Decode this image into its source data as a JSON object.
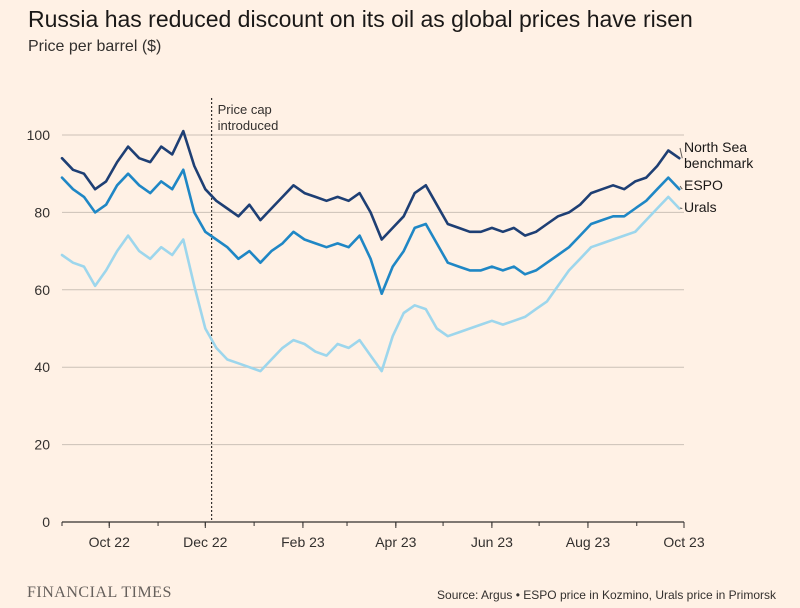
{
  "header": {
    "title": "Russia has reduced discount on its oil as global prices have risen",
    "subtitle": "Price per barrel ($)"
  },
  "footer": {
    "brand": "FINANCIAL TIMES",
    "source": "Source: Argus • ESPO price in Kozmino, Urals price in Primorsk"
  },
  "colors": {
    "background": "#fff1e5",
    "grid": "#ccc1b7",
    "north_sea": "#1e3f74",
    "espo": "#1f87c5",
    "urals": "#9dd6ec"
  },
  "chart_data": {
    "type": "line",
    "title": "Russia has reduced discount on its oil as global prices have risen",
    "ylabel": "Price per barrel ($)",
    "xlabel": "",
    "x_start": "2022-09-01",
    "x_end": "2023-10-01",
    "xlim": [
      "2022-09-01",
      "2023-10-01"
    ],
    "ylim": [
      0,
      100
    ],
    "yticks": [
      0,
      20,
      40,
      60,
      80,
      100
    ],
    "grid": true,
    "xticks": [
      {
        "date": "2022-10-01",
        "label": "Oct 22"
      },
      {
        "date": "2022-12-01",
        "label": "Dec 22"
      },
      {
        "date": "2023-02-01",
        "label": "Feb 23"
      },
      {
        "date": "2023-04-01",
        "label": "Apr 23"
      },
      {
        "date": "2023-06-01",
        "label": "Jun 23"
      },
      {
        "date": "2023-08-01",
        "label": "Aug 23"
      },
      {
        "date": "2023-10-01",
        "label": "Oct 23"
      }
    ],
    "annotations": [
      {
        "date": "2022-12-05",
        "text": [
          "Price cap",
          "introduced"
        ]
      }
    ],
    "x": [
      "2022-09-01",
      "2022-09-08",
      "2022-09-15",
      "2022-09-22",
      "2022-09-29",
      "2022-10-06",
      "2022-10-13",
      "2022-10-20",
      "2022-10-27",
      "2022-11-03",
      "2022-11-10",
      "2022-11-17",
      "2022-11-24",
      "2022-12-01",
      "2022-12-08",
      "2022-12-15",
      "2022-12-22",
      "2022-12-29",
      "2023-01-05",
      "2023-01-12",
      "2023-01-19",
      "2023-01-26",
      "2023-02-02",
      "2023-02-09",
      "2023-02-16",
      "2023-02-23",
      "2023-03-02",
      "2023-03-09",
      "2023-03-16",
      "2023-03-23",
      "2023-03-30",
      "2023-04-06",
      "2023-04-13",
      "2023-04-20",
      "2023-04-27",
      "2023-05-04",
      "2023-05-11",
      "2023-05-18",
      "2023-05-25",
      "2023-06-01",
      "2023-06-08",
      "2023-06-15",
      "2023-06-22",
      "2023-06-29",
      "2023-07-06",
      "2023-07-13",
      "2023-07-20",
      "2023-07-27",
      "2023-08-03",
      "2023-08-10",
      "2023-08-17",
      "2023-08-24",
      "2023-08-31",
      "2023-09-07",
      "2023-09-14",
      "2023-09-21",
      "2023-09-28"
    ],
    "series": [
      {
        "name": "North Sea benchmark",
        "label_lines": [
          "North Sea",
          "benchmark"
        ],
        "color": "#1e3f74",
        "values": [
          94,
          91,
          90,
          86,
          88,
          93,
          97,
          94,
          93,
          97,
          95,
          101,
          92,
          86,
          83,
          81,
          79,
          82,
          78,
          81,
          84,
          87,
          85,
          84,
          83,
          84,
          83,
          85,
          80,
          73,
          76,
          79,
          85,
          87,
          82,
          77,
          76,
          75,
          75,
          76,
          75,
          76,
          74,
          75,
          77,
          79,
          80,
          82,
          85,
          86,
          87,
          86,
          88,
          89,
          92,
          96,
          94
        ]
      },
      {
        "name": "ESPO",
        "label_lines": [
          "ESPO"
        ],
        "color": "#1f87c5",
        "values": [
          89,
          86,
          84,
          80,
          82,
          87,
          90,
          87,
          85,
          88,
          86,
          91,
          80,
          75,
          73,
          71,
          68,
          70,
          67,
          70,
          72,
          75,
          73,
          72,
          71,
          72,
          71,
          74,
          68,
          59,
          66,
          70,
          76,
          77,
          72,
          67,
          66,
          65,
          65,
          66,
          65,
          66,
          64,
          65,
          67,
          69,
          71,
          74,
          77,
          78,
          79,
          79,
          81,
          83,
          86,
          89,
          86
        ]
      },
      {
        "name": "Urals",
        "label_lines": [
          "Urals"
        ],
        "color": "#9dd6ec",
        "values": [
          69,
          67,
          66,
          61,
          65,
          70,
          74,
          70,
          68,
          71,
          69,
          73,
          61,
          50,
          45,
          42,
          41,
          40,
          39,
          42,
          45,
          47,
          46,
          44,
          43,
          46,
          45,
          47,
          43,
          39,
          48,
          54,
          56,
          55,
          50,
          48,
          49,
          50,
          51,
          52,
          51,
          52,
          53,
          55,
          57,
          61,
          65,
          68,
          71,
          72,
          73,
          74,
          75,
          78,
          81,
          84,
          81
        ]
      }
    ]
  }
}
